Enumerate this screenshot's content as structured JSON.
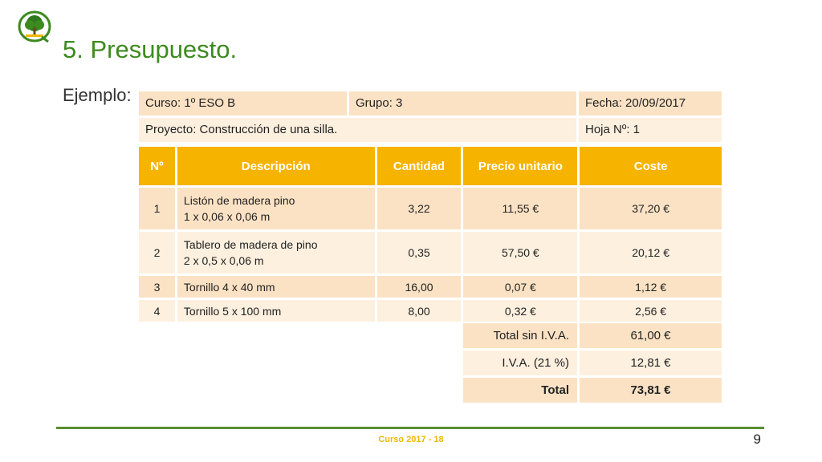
{
  "slide": {
    "title": "5. Presupuesto.",
    "subtitle": "Ejemplo:",
    "footer": "Curso 2017 - 18",
    "page_number": "9"
  },
  "header": {
    "curso": "Curso: 1º ESO B",
    "grupo": "Grupo: 3",
    "fecha": "Fecha: 20/09/2017",
    "proyecto": "Proyecto: Construcción de una silla.",
    "hoja": "Hoja Nº: 1"
  },
  "table": {
    "columns": [
      "Nº",
      "Descripción",
      "Cantidad",
      "Precio unitario",
      "Coste"
    ],
    "rows": [
      {
        "num": "1",
        "desc1": "Listón de madera pino",
        "desc2": "1 x 0,06 x 0,06 m",
        "qty": "3,22",
        "price": "11,55 €",
        "cost": "37,20 €"
      },
      {
        "num": "2",
        "desc1": "Tablero de madera de pino",
        "desc2": "2 x 0,5 x 0,06 m",
        "qty": "0,35",
        "price": "57,50 €",
        "cost": "20,12 €"
      },
      {
        "num": "3",
        "desc1": "Tornillo 4 x 40 mm",
        "desc2": "",
        "qty": "16,00",
        "price": "0,07 €",
        "cost": "1,12 €"
      },
      {
        "num": "4",
        "desc1": "Tornillo 5 x 100 mm",
        "desc2": "",
        "qty": "8,00",
        "price": "0,32 €",
        "cost": "2,56 €"
      }
    ]
  },
  "totals": {
    "subtotal_label": "Total sin I.V.A.",
    "subtotal_value": "61,00 €",
    "iva_label": "I.V.A. (21 %)",
    "iva_value": "12,81 €",
    "total_label": "Total",
    "total_value": "73,81 €"
  },
  "colors": {
    "title_green": "#3d8a1f",
    "header_orange": "#f6b300",
    "peach": "#fbe2c4",
    "light_peach": "#fdf0df",
    "footer_yellow": "#f0b800",
    "footer_line_green": "#5a8f2f"
  },
  "icons": {
    "logo": "tree-logo-icon"
  }
}
